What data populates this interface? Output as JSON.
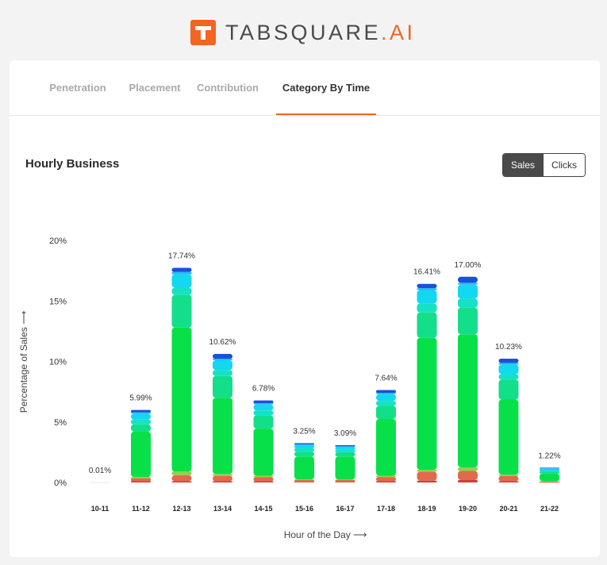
{
  "brand": {
    "name": "TABSQUARE",
    "accent": ".AI",
    "logo_icon": "t-logo-icon",
    "color": "#f26522"
  },
  "tabs": [
    {
      "label": "Penetration",
      "active": false
    },
    {
      "label": "Placement",
      "active": false
    },
    {
      "label": "Contribution",
      "active": false
    },
    {
      "label": "Category By Time",
      "active": true
    }
  ],
  "section": {
    "title": "Hourly Business"
  },
  "toggle": {
    "options": [
      {
        "label": "Sales",
        "selected": true
      },
      {
        "label": "Clicks",
        "selected": false
      }
    ]
  },
  "chart_data": {
    "type": "bar",
    "stacked": true,
    "categories": [
      "10-11",
      "11-12",
      "12-13",
      "13-14",
      "14-15",
      "15-16",
      "16-17",
      "17-18",
      "18-19",
      "19-20",
      "20-21",
      "21-22"
    ],
    "totals": [
      0.01,
      5.99,
      17.74,
      10.62,
      6.78,
      3.25,
      3.09,
      7.64,
      16.41,
      17.0,
      10.23,
      1.22
    ],
    "total_labels": [
      "0.01%",
      "5.99%",
      "17.74%",
      "10.62%",
      "6.78%",
      "3.25%",
      "3.09%",
      "7.64%",
      "16.41%",
      "17.00%",
      "10.23%",
      "1.22%"
    ],
    "series": [
      {
        "color": "#d63a3a",
        "values": [
          0,
          0.1,
          0.1,
          0.1,
          0.1,
          0.05,
          0.05,
          0.1,
          0.15,
          0.2,
          0.1,
          0.02
        ]
      },
      {
        "color": "#e06a4e",
        "values": [
          0,
          0.25,
          0.5,
          0.45,
          0.35,
          0.15,
          0.15,
          0.35,
          0.75,
          0.75,
          0.45,
          0.05
        ]
      },
      {
        "color": "#8fd14a",
        "values": [
          0,
          0.1,
          0.3,
          0.15,
          0.1,
          0.05,
          0.05,
          0.1,
          0.15,
          0.3,
          0.1,
          0.03
        ]
      },
      {
        "color": "#08e04a",
        "values": [
          0,
          3.75,
          11.9,
          6.3,
          3.9,
          1.9,
          1.9,
          4.7,
          10.9,
          11.0,
          6.2,
          0.65
        ]
      },
      {
        "color": "#13de8a",
        "values": [
          0,
          0.6,
          2.7,
          1.8,
          1.1,
          0.4,
          0.35,
          1.1,
          2.1,
          2.2,
          1.65,
          0.1
        ]
      },
      {
        "color": "#15e2c4",
        "values": [
          0,
          0.4,
          0.6,
          0.5,
          0.4,
          0.3,
          0.2,
          0.4,
          0.75,
          0.75,
          0.45,
          0.1
        ]
      },
      {
        "color": "#12d8f0",
        "values": [
          0,
          0.5,
          1.1,
          0.8,
          0.5,
          0.25,
          0.25,
          0.55,
          1.1,
          1.15,
          0.8,
          0.18
        ]
      },
      {
        "color": "#25b8f5",
        "values": [
          0,
          0.1,
          0.2,
          0.12,
          0.1,
          0.05,
          0.04,
          0.09,
          0.16,
          0.15,
          0.13,
          0.04
        ]
      },
      {
        "color": "#1752d9",
        "values": [
          0.01,
          0.19,
          0.34,
          0.4,
          0.23,
          0.1,
          0.09,
          0.25,
          0.35,
          0.5,
          0.35,
          0.05
        ]
      }
    ],
    "xlabel": "Hour of the Day ⟶",
    "ylabel": "Percentage of Sales ⟶",
    "y_ticks": [
      "0%",
      "5%",
      "10%",
      "15%",
      "20%"
    ],
    "ylim": [
      0,
      20
    ],
    "grid": false,
    "legend": "none"
  }
}
